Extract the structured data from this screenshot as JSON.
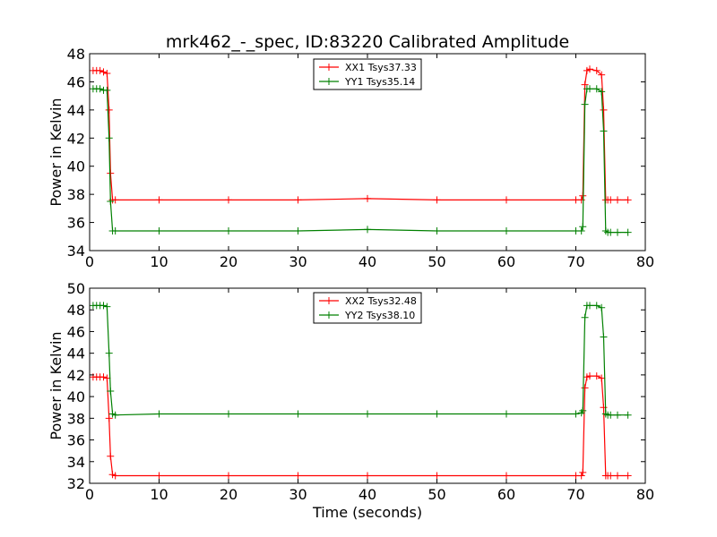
{
  "figure": {
    "title": "mrk462_-_spec, ID:83220 Calibrated Amplitude",
    "xlabel": "Time (seconds)"
  },
  "colors": {
    "xx": "#ff0000",
    "yy": "#008000"
  },
  "chart_data": [
    {
      "type": "line",
      "title": "mrk462_-_spec, ID:83220 Calibrated Amplitude",
      "xlabel": "",
      "ylabel": "Power in Kelvin",
      "xlim": [
        0,
        80
      ],
      "ylim": [
        34,
        48
      ],
      "xticks": [
        "0",
        "10",
        "20",
        "30",
        "40",
        "50",
        "60",
        "70",
        "80"
      ],
      "yticks": [
        "34",
        "36",
        "38",
        "40",
        "42",
        "44",
        "46",
        "48"
      ],
      "grid": false,
      "legend_position": "top-center",
      "series": [
        {
          "name": "XX1 Tsys37.33",
          "color": "#ff0000",
          "x": [
            0.5,
            1.0,
            1.5,
            2.0,
            2.5,
            2.8,
            3.0,
            3.3,
            3.7,
            10,
            20,
            30,
            40,
            50,
            60,
            70,
            70.8,
            71.0,
            71.3,
            71.6,
            72.0,
            73.0,
            73.7,
            74.0,
            74.3,
            74.6,
            75,
            76,
            77.5
          ],
          "y": [
            46.8,
            46.8,
            46.8,
            46.7,
            46.6,
            44.0,
            39.5,
            37.6,
            37.6,
            37.6,
            37.6,
            37.6,
            37.7,
            37.6,
            37.6,
            37.6,
            37.6,
            37.9,
            45.8,
            46.8,
            46.9,
            46.8,
            46.5,
            44.0,
            37.6,
            37.6,
            37.6,
            37.6,
            37.6
          ]
        },
        {
          "name": "YY1 Tsys35.14",
          "color": "#008000",
          "x": [
            0.5,
            1.0,
            1.5,
            2.0,
            2.5,
            2.8,
            3.0,
            3.3,
            3.7,
            10,
            20,
            30,
            40,
            50,
            60,
            70,
            70.8,
            71.0,
            71.3,
            71.6,
            72.0,
            73.0,
            73.7,
            74.0,
            74.3,
            74.6,
            75,
            76,
            77.5
          ],
          "y": [
            45.5,
            45.5,
            45.5,
            45.4,
            45.4,
            42.0,
            37.5,
            35.4,
            35.4,
            35.4,
            35.4,
            35.4,
            35.5,
            35.4,
            35.4,
            35.4,
            35.4,
            35.7,
            44.4,
            45.5,
            45.5,
            45.5,
            45.3,
            42.5,
            35.4,
            35.3,
            35.3,
            35.3,
            35.3
          ]
        }
      ]
    },
    {
      "type": "line",
      "title": "",
      "xlabel": "Time (seconds)",
      "ylabel": "Power in Kelvin",
      "xlim": [
        0,
        80
      ],
      "ylim": [
        32,
        50
      ],
      "xticks": [
        "0",
        "10",
        "20",
        "30",
        "40",
        "50",
        "60",
        "70",
        "80"
      ],
      "yticks": [
        "32",
        "34",
        "36",
        "38",
        "40",
        "42",
        "44",
        "46",
        "48",
        "50"
      ],
      "grid": false,
      "legend_position": "top-center",
      "series": [
        {
          "name": "XX2 Tsys32.48",
          "color": "#ff0000",
          "x": [
            0.5,
            1.0,
            1.5,
            2.0,
            2.5,
            2.8,
            3.0,
            3.3,
            3.7,
            10,
            20,
            30,
            40,
            50,
            60,
            70,
            70.8,
            71.0,
            71.3,
            71.6,
            72.0,
            73.0,
            73.7,
            74.0,
            74.3,
            74.6,
            75,
            76,
            77.5
          ],
          "y": [
            41.8,
            41.8,
            41.8,
            41.8,
            41.7,
            38.0,
            34.5,
            32.8,
            32.7,
            32.7,
            32.7,
            32.7,
            32.7,
            32.7,
            32.7,
            32.7,
            32.7,
            33.0,
            40.8,
            41.8,
            41.9,
            41.9,
            41.7,
            39.0,
            32.7,
            32.7,
            32.7,
            32.7,
            32.7
          ]
        },
        {
          "name": "YY2 Tsys38.10",
          "color": "#008000",
          "x": [
            0.5,
            1.0,
            1.5,
            2.0,
            2.5,
            2.8,
            3.0,
            3.3,
            3.7,
            10,
            20,
            30,
            40,
            50,
            60,
            70,
            70.8,
            71.0,
            71.3,
            71.6,
            72.0,
            73.0,
            73.7,
            74.0,
            74.3,
            74.6,
            75,
            76,
            77.5
          ],
          "y": [
            48.4,
            48.4,
            48.4,
            48.4,
            48.3,
            44.0,
            40.5,
            38.4,
            38.3,
            38.4,
            38.4,
            38.4,
            38.4,
            38.4,
            38.4,
            38.4,
            38.5,
            38.7,
            47.3,
            48.4,
            48.4,
            48.4,
            48.2,
            45.5,
            38.4,
            38.3,
            38.3,
            38.3,
            38.3
          ]
        }
      ]
    }
  ]
}
